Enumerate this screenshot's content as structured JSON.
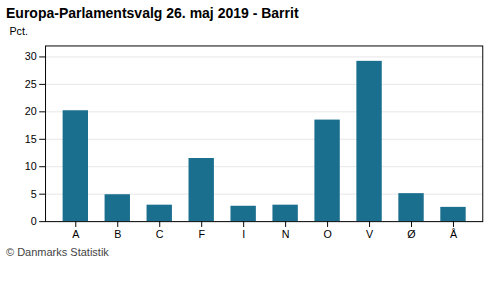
{
  "chart_data": {
    "type": "bar",
    "title": "Europa-Parlamentsvalg 26. maj 2019 - Barrit",
    "caption": "© Danmarks Statistik",
    "ylabel": "Pct.",
    "categories": [
      "A",
      "B",
      "C",
      "F",
      "I",
      "N",
      "O",
      "V",
      "Ø",
      "Å"
    ],
    "values": [
      20.2,
      4.9,
      3.0,
      11.5,
      2.8,
      3.0,
      18.5,
      29.2,
      5.1,
      2.6
    ],
    "color": "#1a6e8e",
    "ylim": [
      0,
      32
    ],
    "yticks": [
      0,
      5,
      10,
      15,
      20,
      25,
      30
    ],
    "grid": true
  }
}
